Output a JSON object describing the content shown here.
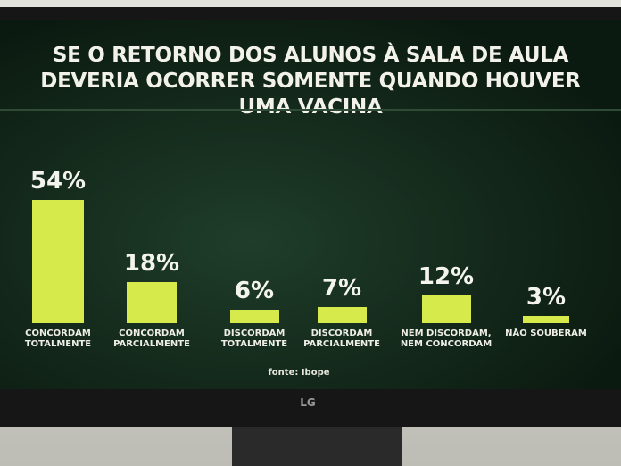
{
  "chart_data": {
    "type": "bar",
    "title": "SE O RETORNO DOS ALUNOS À SALA DE AULA DEVERIA OCORRER SOMENTE QUANDO HOUVER UMA VACINA",
    "categories": [
      "CONCORDAM TOTALMENTE",
      "CONCORDAM PARCIALMENTE",
      "DISCORDAM TOTALMENTE",
      "DISCORDAM PARCIALMENTE",
      "NEM DISCORDAM, NEM CONCORDAM",
      "NÃO SOUBERAM"
    ],
    "values": [
      54,
      18,
      6,
      7,
      12,
      3
    ],
    "value_labels": [
      "54%",
      "18%",
      "6%",
      "7%",
      "12%",
      "3%"
    ],
    "color": "#d6ea4c",
    "source": "fonte: Ibope"
  },
  "bezel": {
    "brand": "LG"
  }
}
